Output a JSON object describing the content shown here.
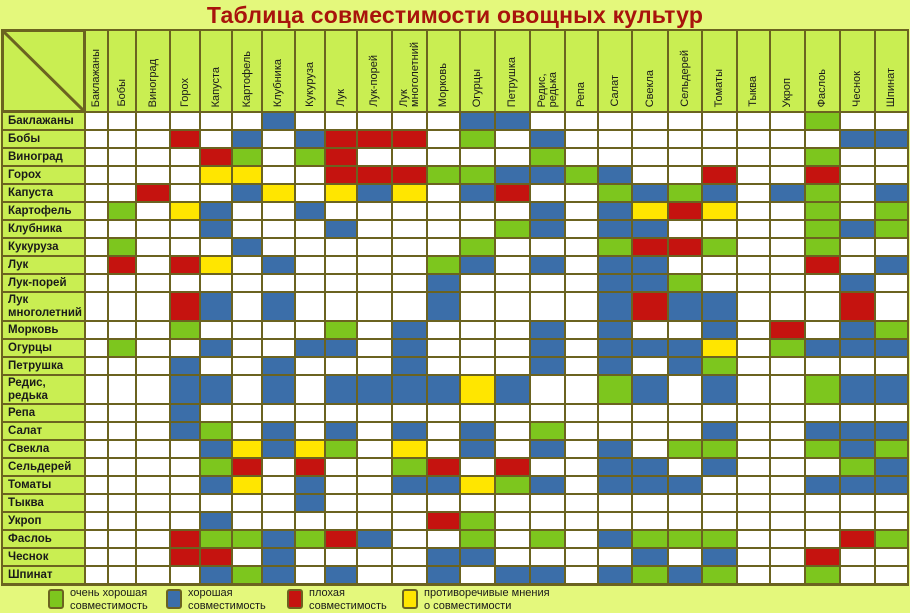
{
  "title": "Таблица совместимости овощных культур",
  "colors": {
    "G": "#7dc61e",
    "B": "#3b6ea9",
    "R": "#c5130f",
    "Y": "#ffe600",
    "W": "#ffffff"
  },
  "legend": [
    {
      "code": "G",
      "label": "очень хорошая\nсовместимость"
    },
    {
      "code": "B",
      "label": "хорошая\nсовместимость"
    },
    {
      "code": "R",
      "label": "плохая\nсовместимость"
    },
    {
      "code": "Y",
      "label": "противоречивые мнения\nо совместимости"
    }
  ],
  "columns": [
    "Баклажаны",
    "Бобы",
    "Виноград",
    "Горох",
    "Капуста",
    "Картофель",
    "Клубника",
    "Кукуруза",
    "Лук",
    "Лук-порей",
    "Лук\nмноголетний",
    "Морковь",
    "Огурцы",
    "Петрушка",
    "Редис,\nредька",
    "Репа",
    "Салат",
    "Свекла",
    "Сельдерей",
    "Томаты",
    "Тыква",
    "Укроп",
    "Фаслоь",
    "Чеснок",
    "Шпинат"
  ],
  "rows": [
    {
      "label": "Баклажаны",
      "cells": "WWWWWWBWWWWWBBWWWWWWWWGWW"
    },
    {
      "label": "Бобы",
      "cells": "WWWRWBWBRRRWGWBWWWWWWWWBB"
    },
    {
      "label": "Виноград",
      "cells": "WWWWRGWGRWWWWWGWWWWWWWGWW"
    },
    {
      "label": "Горох",
      "cells": "WWWWYYWWRRRGGBBGBWWRWWRWW"
    },
    {
      "label": "Капуста",
      "cells": "WWRWWBYWYBYWBRWWGBGBWBGWB"
    },
    {
      "label": "Картофель",
      "cells": "WGWYBWWBWWWWWWBWBYRYWWGWG"
    },
    {
      "label": "Клубника",
      "cells": "WWWWBWWWBWWWWGBWBBWWWWGBG"
    },
    {
      "label": "Кукуруза",
      "cells": "WGWWWBWWWWWWGWWWGRRGWWGWW"
    },
    {
      "label": "Лук",
      "cells": "WRWRYWBWWWWGBWBWBBWWWWRWB"
    },
    {
      "label": "Лук-порей",
      "cells": "WWWWWWWWWWWBWWWWBBGWWWWBW"
    },
    {
      "label": "Лук\nмноголетний",
      "cells": "WWWRBWBWWWWBWWWWBRBBWWWRW",
      "tall": true
    },
    {
      "label": "Морковь",
      "cells": "WWWGWWWWGWBWWWBWBWWBWRWBG"
    },
    {
      "label": "Огурцы",
      "cells": "WGWWBWWBBWBWWWBWBBBYWGBBB"
    },
    {
      "label": "Петрушка",
      "cells": "WWWBWWBWWWBWWWBWBWBGWWWWW"
    },
    {
      "label": "Редис,\nредька",
      "cells": "WWWBBWBWBBBBYBWWGBWBWWGBB",
      "tall": true
    },
    {
      "label": "Репа",
      "cells": "WWWBWWWWWWWWWWWWWWWWWWWWW"
    },
    {
      "label": "Салат",
      "cells": "WWWBGWBWBWBWBWGWWWWBWWBBB"
    },
    {
      "label": "Свекла",
      "cells": "WWWWBYBYGWYWBWBWBWGGWWGBG"
    },
    {
      "label": "Сельдерей",
      "cells": "WWWWGRWRWWGRWRWWBBWBWWWGB"
    },
    {
      "label": "Томаты",
      "cells": "WWWWBYWBWWBBYGBWBBBWWWBBB"
    },
    {
      "label": "Тыква",
      "cells": "WWWWWWWBWWWWWWWWWWWWWWWWW"
    },
    {
      "label": "Укроп",
      "cells": "WWWWBWWWWWWRGWWWWWWWWWWWW"
    },
    {
      "label": "Фаслоь",
      "cells": "WWWRGGBGRBWWGWGWBGGGWWWRG"
    },
    {
      "label": "Чеснок",
      "cells": "WWWRRWBWWWWBBWWWWBWBWWRWW"
    },
    {
      "label": "Шпинат",
      "cells": "WWWWBGBWBWWBWBBWBGBGWWGWW"
    }
  ]
}
